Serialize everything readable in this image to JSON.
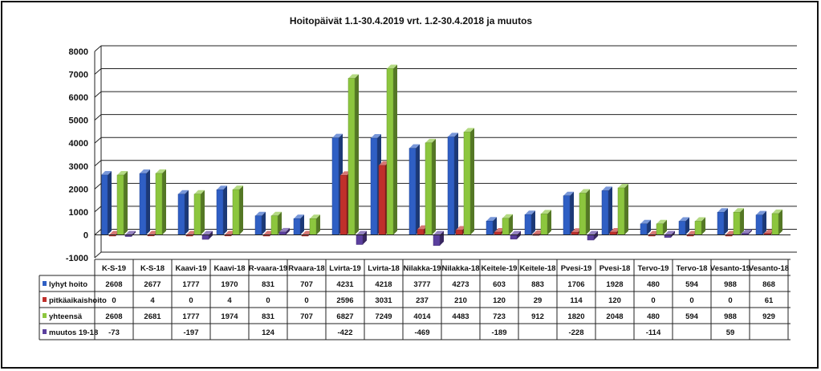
{
  "chart_data": {
    "type": "bar",
    "title": "Hoitopäivät 1.1-30.4.2019 vrt. 1.2-30.4.2018 ja muutos",
    "categories": [
      "K-S-19",
      "K-S-18",
      "Kaavi-19",
      "Kaavi-18",
      "R-vaara-19",
      "Rvaara-18",
      "Lvirta-19",
      "Lvirta-18",
      "Nilakka-19",
      "Nilakka-18",
      "Keitele-19",
      "Keitele-18",
      "Pvesi-19",
      "Pvesi-18",
      "Tervo-19",
      "Tervo-18",
      "Vesanto-19",
      "Vesanto-18"
    ],
    "ylim": [
      -1000,
      8000
    ],
    "yticks": [
      "-1000",
      "0",
      "1000",
      "2000",
      "3000",
      "4000",
      "5000",
      "6000",
      "7000",
      "8000"
    ],
    "grid": true,
    "legend": "data-table",
    "series": [
      {
        "name": "lyhyt hoito",
        "color": "#2f5fc4",
        "values": [
          2608,
          2677,
          1777,
          1970,
          831,
          707,
          4231,
          4218,
          3777,
          4273,
          603,
          883,
          1706,
          1928,
          480,
          594,
          988,
          868
        ],
        "labels": [
          "2608",
          "2677",
          "1777",
          "1970",
          "831",
          "707",
          "4231",
          "4218",
          "3777",
          "4273",
          "603",
          "883",
          "1706",
          "1928",
          "480",
          "594",
          "988",
          "868"
        ]
      },
      {
        "name": "pitkäaikaishoito",
        "color": "#c0302b",
        "values": [
          0,
          4,
          0,
          4,
          0,
          0,
          2596,
          3031,
          237,
          210,
          120,
          29,
          114,
          120,
          0,
          0,
          0,
          61
        ],
        "labels": [
          "0",
          "4",
          "0",
          "4",
          "0",
          "0",
          "2596",
          "3031",
          "237",
          "210",
          "120",
          "29",
          "114",
          "120",
          "0",
          "0",
          "0",
          "61"
        ]
      },
      {
        "name": "yhteensä",
        "color": "#8cc63e",
        "values": [
          2608,
          2681,
          1777,
          1974,
          831,
          707,
          6827,
          7249,
          4014,
          4483,
          723,
          912,
          1820,
          2048,
          480,
          594,
          988,
          929
        ],
        "labels": [
          "2608",
          "2681",
          "1777",
          "1974",
          "831",
          "707",
          "6827",
          "7249",
          "4014",
          "4483",
          "723",
          "912",
          "1820",
          "2048",
          "480",
          "594",
          "988",
          "929"
        ]
      },
      {
        "name": "muutos 19-18",
        "color": "#5b3f9e",
        "values": [
          -73,
          null,
          -197,
          null,
          124,
          null,
          -422,
          null,
          -469,
          null,
          -189,
          null,
          -228,
          null,
          -114,
          null,
          59,
          null
        ],
        "labels": [
          "-73",
          "",
          "-197",
          "",
          "124",
          "",
          "-422",
          "",
          "-469",
          "",
          "-189",
          "",
          "-228",
          "",
          "-114",
          "",
          "59",
          ""
        ]
      }
    ]
  }
}
